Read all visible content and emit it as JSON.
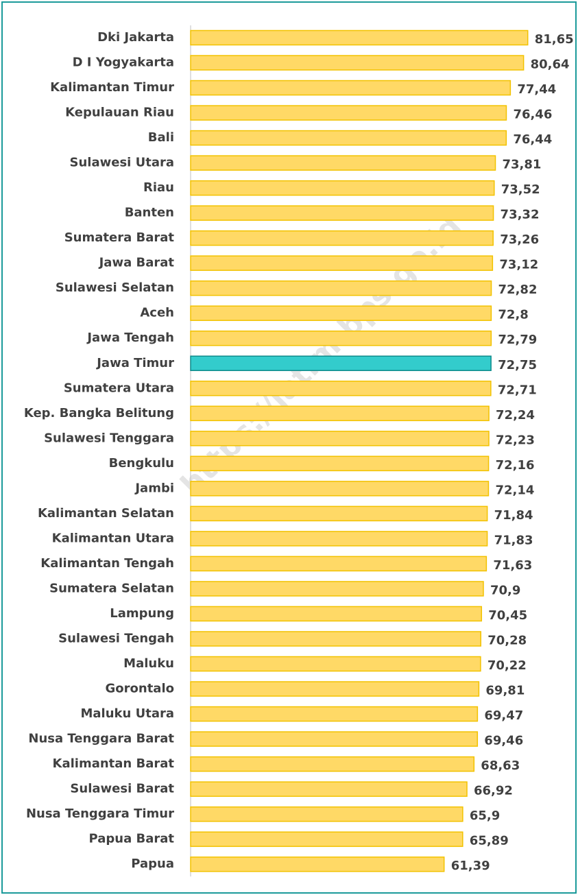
{
  "chart_data": {
    "type": "bar",
    "orientation": "horizontal",
    "watermark": "https://jatim.bps.go.id",
    "categories": [
      "Dki Jakarta",
      "D I Yogyakarta",
      "Kalimantan Timur",
      "Kepulauan Riau",
      "Bali",
      "Sulawesi Utara",
      "Riau",
      "Banten",
      "Sumatera Barat",
      "Jawa Barat",
      "Sulawesi Selatan",
      "Aceh",
      "Jawa Tengah",
      "Jawa Timur",
      "Sumatera Utara",
      "Kep. Bangka Belitung",
      "Sulawesi Tenggara",
      "Bengkulu",
      "Jambi",
      "Kalimantan Selatan",
      "Kalimantan Utara",
      "Kalimantan Tengah",
      "Sumatera Selatan",
      "Lampung",
      "Sulawesi Tengah",
      "Maluku",
      "Gorontalo",
      "Maluku Utara",
      "Nusa Tenggara Barat",
      "Kalimantan Barat",
      "Sulawesi Barat",
      "Nusa Tenggara Timur",
      "Papua Barat",
      "Papua"
    ],
    "values": [
      81.65,
      80.64,
      77.44,
      76.46,
      76.44,
      73.81,
      73.52,
      73.32,
      73.26,
      73.12,
      72.82,
      72.8,
      72.79,
      72.75,
      72.71,
      72.24,
      72.23,
      72.16,
      72.14,
      71.84,
      71.83,
      71.63,
      70.9,
      70.45,
      70.28,
      70.22,
      69.81,
      69.47,
      69.46,
      68.63,
      66.92,
      65.9,
      65.89,
      61.39
    ],
    "value_labels": [
      "81,65",
      "80,64",
      "77,44",
      "76,46",
      "76,44",
      "73,81",
      "73,52",
      "73,32",
      "73,26",
      "73,12",
      "72,82",
      "72,8",
      "72,79",
      "72,75",
      "72,71",
      "72,24",
      "72,23",
      "72,16",
      "72,14",
      "71,84",
      "71,83",
      "71,63",
      "70,9",
      "70,45",
      "70,28",
      "70,22",
      "69,81",
      "69,47",
      "69,46",
      "68,63",
      "66,92",
      "65,9",
      "65,89",
      "61,39"
    ],
    "colors": [
      "#ffd966",
      "#ffd966",
      "#ffd966",
      "#ffd966",
      "#ffd966",
      "#ffd966",
      "#ffd966",
      "#ffd966",
      "#ffd966",
      "#ffd966",
      "#ffd966",
      "#ffd966",
      "#ffd966",
      "#33cccc",
      "#ffd966",
      "#ffd966",
      "#ffd966",
      "#ffd966",
      "#ffd966",
      "#ffd966",
      "#ffd966",
      "#ffd966",
      "#ffd966",
      "#ffd966",
      "#ffd966",
      "#ffd966",
      "#ffd966",
      "#ffd966",
      "#ffd966",
      "#ffd966",
      "#ffd966",
      "#ffd966",
      "#ffd966",
      "#ffd966"
    ],
    "xlim": [
      0,
      90
    ]
  }
}
